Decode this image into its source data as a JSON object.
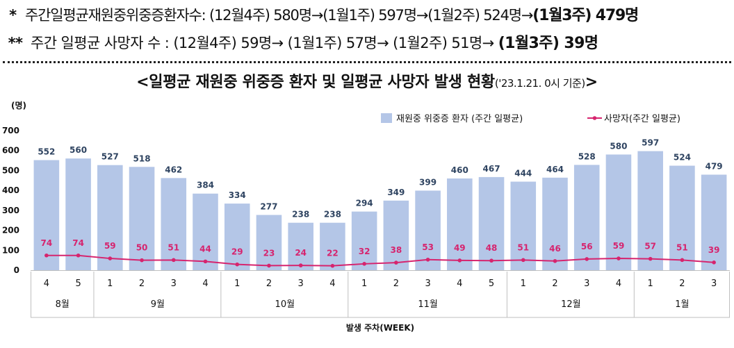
{
  "header": {
    "line1": {
      "marker": "*",
      "text": "주간일평균재원중위중증환자수: (12월4주) 580명→(1월1주) 597명→(1월2주) 524명→",
      "highlight": "(1월3주) 479명"
    },
    "line2": {
      "marker": "**",
      "text": "주간 일평균 사망자 수 : (12월4주) 59명→ (1월1주) 57명→ (1월2주) 51명→ ",
      "highlight": "(1월3주) 39명"
    },
    "title_main": "<일평균 재원중 위중증 환자 및 일평균 사망자 발생 현황",
    "title_sub": "('23.1.21. 0시 기준)",
    "title_end": ">"
  },
  "chart_data": {
    "type": "bar",
    "y_unit_label": "(명)",
    "ylim": [
      0,
      700
    ],
    "yticks": [
      0,
      100,
      200,
      300,
      400,
      500,
      600,
      700
    ],
    "xlabel": "발생 주차(WEEK)",
    "legend_position": "top-right",
    "weeks": [
      "4",
      "5",
      "1",
      "2",
      "3",
      "4",
      "1",
      "2",
      "3",
      "4",
      "1",
      "2",
      "3",
      "4",
      "5",
      "1",
      "2",
      "3",
      "4",
      "1",
      "2",
      "3"
    ],
    "months": [
      {
        "label": "8월",
        "count": 2
      },
      {
        "label": "9월",
        "count": 4
      },
      {
        "label": "10월",
        "count": 4
      },
      {
        "label": "11월",
        "count": 5
      },
      {
        "label": "12월",
        "count": 4
      },
      {
        "label": "1월",
        "count": 3
      }
    ],
    "series": [
      {
        "name": "재원중 위중증 환자 (주간 일평균)",
        "kind": "bar",
        "color": "#b4c6e7",
        "values": [
          552,
          560,
          527,
          518,
          462,
          384,
          334,
          277,
          238,
          238,
          294,
          349,
          399,
          460,
          467,
          444,
          464,
          528,
          580,
          597,
          524,
          479
        ]
      },
      {
        "name": "사망자(주간 일평균)",
        "kind": "line",
        "color": "#d6246e",
        "values": [
          74,
          74,
          59,
          50,
          51,
          44,
          29,
          23,
          24,
          22,
          32,
          38,
          53,
          49,
          48,
          51,
          46,
          56,
          59,
          57,
          51,
          39
        ]
      }
    ]
  }
}
